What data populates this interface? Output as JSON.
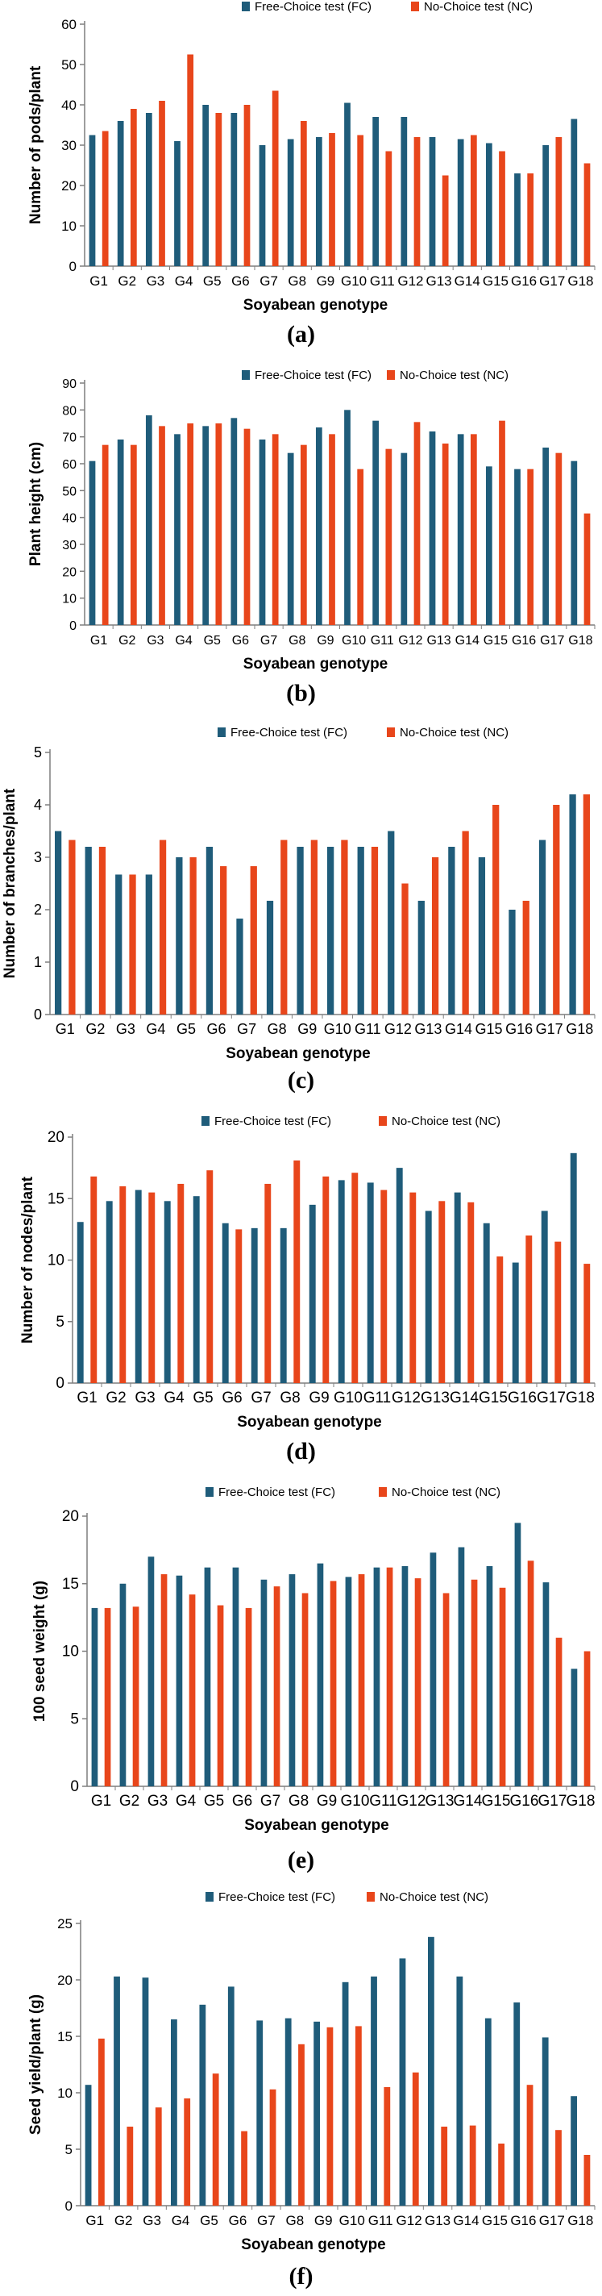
{
  "colors": {
    "fc": "#1f5c7a",
    "nc": "#e8461b",
    "axis": "#7f7f7f",
    "text": "#000000"
  },
  "chart_data": [
    {
      "type": "bar",
      "panel_label": "(a)",
      "xlabel": "Soyabean genotype",
      "ylabel": "Number of pods/plant",
      "ylim": [
        0,
        60
      ],
      "yticks": [
        0,
        10,
        20,
        30,
        40,
        50,
        60
      ],
      "grid": false,
      "legend": "top-center",
      "categories": [
        "G1",
        "G2",
        "G3",
        "G4",
        "G5",
        "G6",
        "G7",
        "G8",
        "G9",
        "G10",
        "G11",
        "G12",
        "G13",
        "G14",
        "G15",
        "G16",
        "G17",
        "G18"
      ],
      "series": [
        {
          "name": "Free-Choice test (FC)",
          "color": "#1f5c7a",
          "values": [
            32.5,
            36,
            38,
            31,
            40,
            38,
            30,
            31.5,
            32,
            40.5,
            37,
            37,
            32,
            31.5,
            30.5,
            23,
            30,
            36.5
          ]
        },
        {
          "name": "No-Choice test (NC)",
          "color": "#e8461b",
          "values": [
            33.5,
            39,
            41,
            52.5,
            38,
            40,
            43.5,
            36,
            33,
            32.5,
            28.5,
            32,
            22.5,
            32.5,
            28.5,
            23,
            32,
            25.5
          ]
        }
      ]
    },
    {
      "type": "bar",
      "panel_label": "(b)",
      "xlabel": "Soyabean genotype",
      "ylabel": "Plant height (cm)",
      "ylim": [
        0,
        90
      ],
      "yticks": [
        0,
        10,
        20,
        30,
        40,
        50,
        60,
        70,
        80,
        90
      ],
      "grid": false,
      "legend": "top-right",
      "categories": [
        "G1",
        "G2",
        "G3",
        "G4",
        "G5",
        "G6",
        "G7",
        "G8",
        "G9",
        "G10",
        "G11",
        "G12",
        "G13",
        "G14",
        "G15",
        "G16",
        "G17",
        "G18"
      ],
      "series": [
        {
          "name": "Free-Choice test (FC)",
          "color": "#1f5c7a",
          "values": [
            61,
            69,
            78,
            71,
            74,
            77,
            69,
            64,
            73.5,
            80,
            76,
            64,
            72,
            71,
            59,
            58,
            66,
            61
          ]
        },
        {
          "name": "No-Choice test (NC)",
          "color": "#e8461b",
          "values": [
            67,
            67,
            74,
            75,
            75,
            73,
            71,
            67,
            71,
            58,
            65.5,
            75.5,
            67.5,
            71,
            76,
            58,
            64,
            41.5
          ]
        }
      ]
    },
    {
      "type": "bar",
      "panel_label": "(c)",
      "xlabel": "Soyabean genotype",
      "ylabel": "Number of branches/plant",
      "ylim": [
        0,
        5
      ],
      "yticks": [
        0,
        1,
        2,
        3,
        4,
        5
      ],
      "grid": false,
      "legend": "top-right",
      "categories": [
        "G1",
        "G2",
        "G3",
        "G4",
        "G5",
        "G6",
        "G7",
        "G8",
        "G9",
        "G10",
        "G11",
        "G12",
        "G13",
        "G14",
        "G15",
        "G16",
        "G17",
        "G18"
      ],
      "series": [
        {
          "name": "Free-Choice test (FC)",
          "color": "#1f5c7a",
          "values": [
            3.5,
            3.2,
            2.67,
            2.67,
            3,
            3.2,
            1.83,
            2.17,
            3.2,
            3.2,
            3.2,
            3.5,
            2.17,
            3.2,
            3,
            2,
            3.33,
            4.2
          ]
        },
        {
          "name": "No-Choice test (NC)",
          "color": "#e8461b",
          "values": [
            3.33,
            3.2,
            2.67,
            3.33,
            3,
            2.83,
            2.83,
            3.33,
            3.33,
            3.33,
            3.2,
            2.5,
            3,
            3.5,
            4,
            2.17,
            4,
            4.2
          ]
        }
      ]
    },
    {
      "type": "bar",
      "panel_label": "(d)",
      "xlabel": "Soyabean genotype",
      "ylabel": "Number of nodes/plant",
      "ylim": [
        0,
        20
      ],
      "yticks": [
        0,
        5,
        10,
        15,
        20
      ],
      "grid": false,
      "legend": "top-right",
      "categories": [
        "G1",
        "G2",
        "G3",
        "G4",
        "G5",
        "G6",
        "G7",
        "G8",
        "G9",
        "G10",
        "G11",
        "G12",
        "G13",
        "G14",
        "G15",
        "G16",
        "G17",
        "G18"
      ],
      "series": [
        {
          "name": "Free-Choice test (FC)",
          "color": "#1f5c7a",
          "values": [
            13.1,
            14.8,
            15.7,
            14.8,
            15.2,
            13,
            12.6,
            12.6,
            14.5,
            16.5,
            16.3,
            17.5,
            14,
            15.5,
            13,
            9.8,
            14,
            18.7
          ]
        },
        {
          "name": "No-Choice test (NC)",
          "color": "#e8461b",
          "values": [
            16.8,
            16,
            15.5,
            16.2,
            17.3,
            12.5,
            16.2,
            18.1,
            16.8,
            17.1,
            15.7,
            15.5,
            14.8,
            14.7,
            10.3,
            12,
            11.5,
            9.7
          ]
        }
      ]
    },
    {
      "type": "bar",
      "panel_label": "(e)",
      "xlabel": "Soyabean genotype",
      "ylabel": "100 seed weight (g)",
      "ylim": [
        0,
        20
      ],
      "yticks": [
        0,
        5,
        10,
        15,
        20
      ],
      "grid": false,
      "legend": "top-right",
      "categories": [
        "G1",
        "G2",
        "G3",
        "G4",
        "G5",
        "G6",
        "G7",
        "G8",
        "G9",
        "G10",
        "G11",
        "G12",
        "G13",
        "G14",
        "G15",
        "G16",
        "G17",
        "G18"
      ],
      "series": [
        {
          "name": "Free-Choice test (FC)",
          "color": "#1f5c7a",
          "values": [
            13.2,
            15,
            17,
            15.6,
            16.2,
            16.2,
            15.3,
            15.7,
            16.5,
            15.5,
            16.2,
            16.3,
            17.3,
            17.7,
            16.3,
            19.5,
            15.1,
            8.7
          ]
        },
        {
          "name": "No-Choice test (NC)",
          "color": "#e8461b",
          "values": [
            13.2,
            13.3,
            15.7,
            14.2,
            13.4,
            13.2,
            14.8,
            14.3,
            15.2,
            15.7,
            16.2,
            15.4,
            14.3,
            15.3,
            14.7,
            16.7,
            11,
            10
          ]
        }
      ]
    },
    {
      "type": "bar",
      "panel_label": "(f)",
      "xlabel": "Soyabean genotype",
      "ylabel": "Seed yield/plant (g)",
      "ylim": [
        0,
        25
      ],
      "yticks": [
        0,
        5,
        10,
        15,
        20,
        25
      ],
      "grid": false,
      "legend": "top-right",
      "categories": [
        "G1",
        "G2",
        "G3",
        "G4",
        "G5",
        "G6",
        "G7",
        "G8",
        "G9",
        "G10",
        "G11",
        "G12",
        "G13",
        "G14",
        "G15",
        "G16",
        "G17",
        "G18"
      ],
      "series": [
        {
          "name": "Free-Choice test (FC)",
          "color": "#1f5c7a",
          "values": [
            10.7,
            20.3,
            20.2,
            16.5,
            17.8,
            19.4,
            16.4,
            16.6,
            16.3,
            19.8,
            20.3,
            21.9,
            23.8,
            20.3,
            16.6,
            18,
            14.9,
            9.7
          ]
        },
        {
          "name": "No-Choice test (NC)",
          "color": "#e8461b",
          "values": [
            14.8,
            7,
            8.7,
            9.5,
            11.7,
            6.6,
            10.3,
            14.3,
            15.8,
            15.9,
            10.5,
            11.8,
            7,
            7.1,
            5.5,
            10.7,
            6.7,
            4.5
          ]
        }
      ]
    }
  ]
}
